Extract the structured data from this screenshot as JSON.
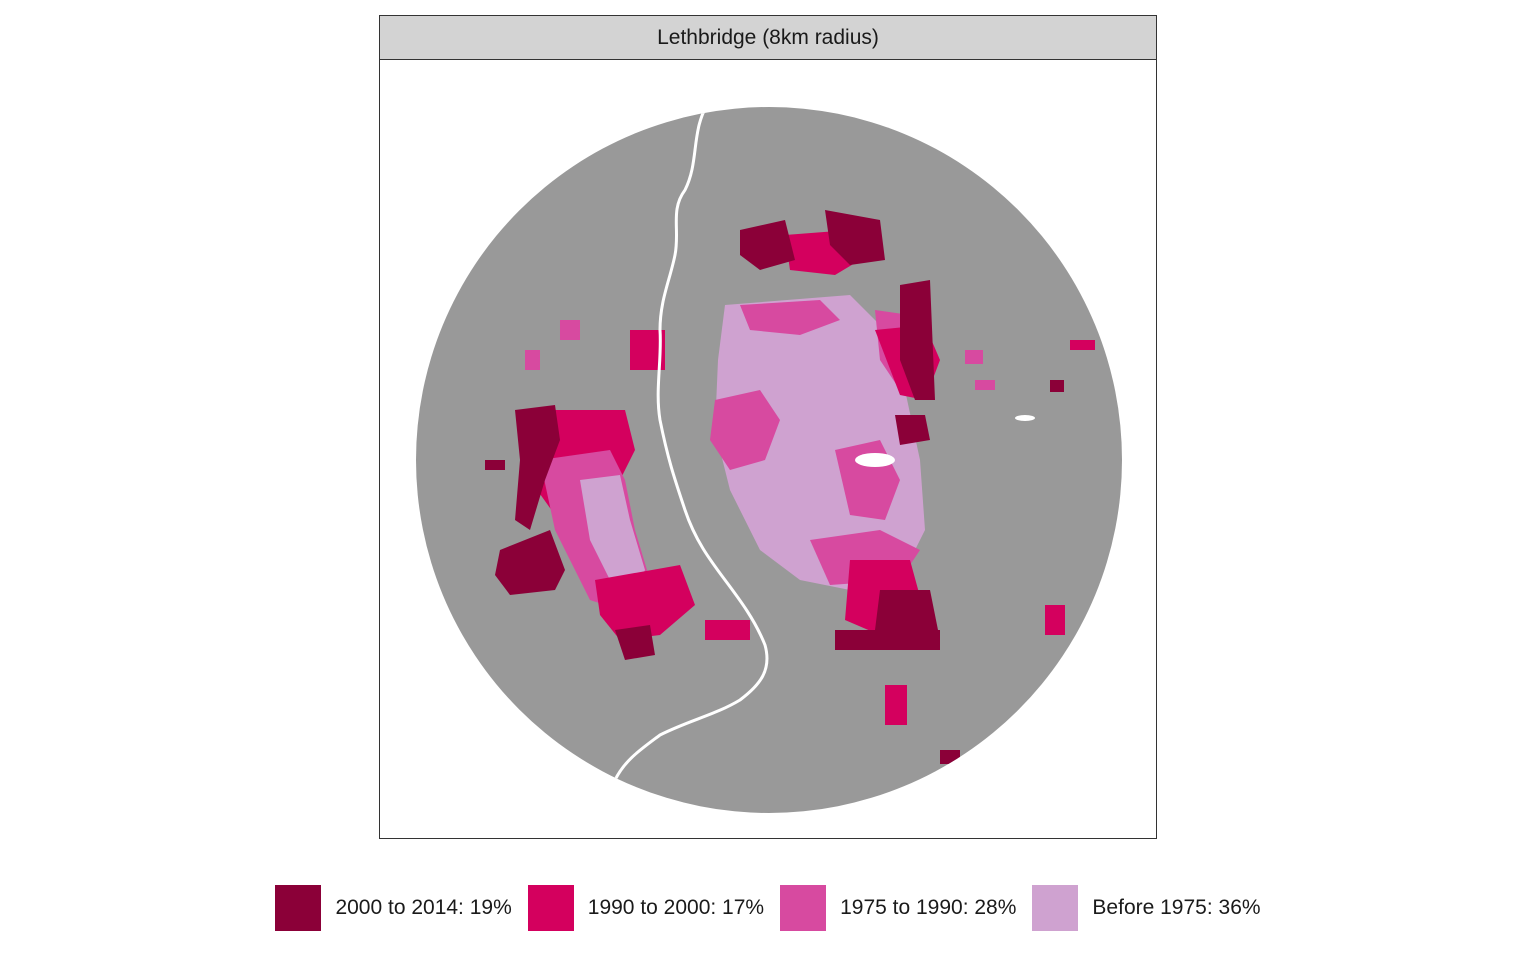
{
  "panel": {
    "title": "Lethbridge (8km radius)"
  },
  "map": {
    "background_color": "#999999",
    "water_color": "#ffffff",
    "classes": [
      {
        "key": "c2000",
        "label": "2000 to 2014: 19%",
        "color": "#8b0038"
      },
      {
        "key": "c1990",
        "label": "1990 to 2000: 17%",
        "color": "#d4005e"
      },
      {
        "key": "c1975",
        "label": "1975 to 1990: 28%",
        "color": "#d74aa0"
      },
      {
        "key": "cpre",
        "label": "Before 1975: 36%",
        "color": "#cfa2d0"
      }
    ]
  }
}
